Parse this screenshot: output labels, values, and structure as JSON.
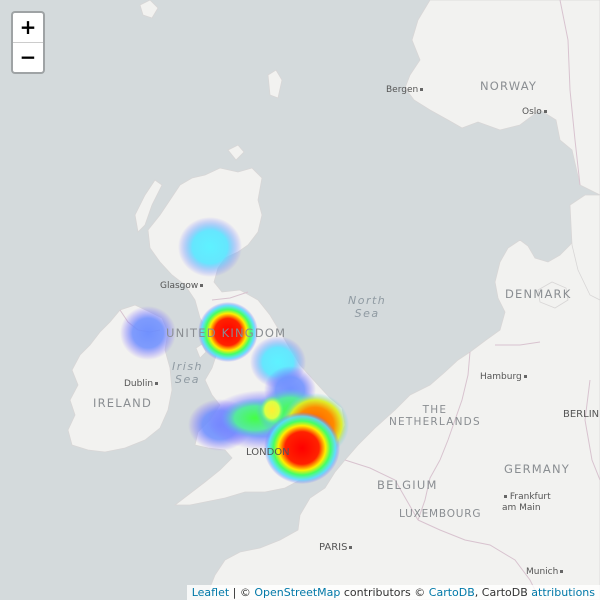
{
  "zoom": {
    "in_label": "+",
    "out_label": "−"
  },
  "labels": {
    "norway": "NORWAY",
    "bergen": "Bergen",
    "oslo": "Oslo",
    "denmark": "DENMARK",
    "north_sea_1": "North",
    "north_sea_2": "Sea",
    "glasgow": "Glasgow",
    "united_kingdom_1": "UNITED",
    "united_kingdom_2": "KINGDOM",
    "irish_sea_1": "Irish",
    "irish_sea_2": "Sea",
    "dublin": "Dublin",
    "ireland": "IRELAND",
    "hamburg": "Hamburg",
    "berlin": "BERLIN",
    "netherlands_1": "THE",
    "netherlands_2": "NETHERLANDS",
    "germany": "GERMANY",
    "london": "LONDON",
    "belgium": "BELGIUM",
    "luxembourg": "LUXEMBOURG",
    "frankfurt_1": "Frankfurt",
    "frankfurt_2": "am Main",
    "paris": "PARIS",
    "munich": "Munich"
  },
  "attribution": {
    "leaflet": "Leaflet",
    "sep1": " | © ",
    "osm": "OpenStreetMap",
    "contrib": " contributors © ",
    "cartodb": "CartoDB",
    "mid": ", CartoDB ",
    "attributions": "attributions"
  },
  "colors": {
    "water": "#d4dadc",
    "land": "#f2f2f0",
    "border": "#d8c3cf",
    "link": "#0078a8"
  },
  "heatmap": {
    "points": [
      {
        "place": "Scottish Highlands",
        "intensity": 0.45
      },
      {
        "place": "Northern Ireland",
        "intensity": 0.35
      },
      {
        "place": "Cumbria",
        "intensity": 1.0
      },
      {
        "place": "Yorkshire",
        "intensity": 0.45
      },
      {
        "place": "Wales",
        "intensity": 0.35
      },
      {
        "place": "West Midlands",
        "intensity": 0.7
      },
      {
        "place": "East Midlands",
        "intensity": 0.8
      },
      {
        "place": "Cambridgeshire",
        "intensity": 0.9
      },
      {
        "place": "London",
        "intensity": 1.0
      }
    ]
  }
}
